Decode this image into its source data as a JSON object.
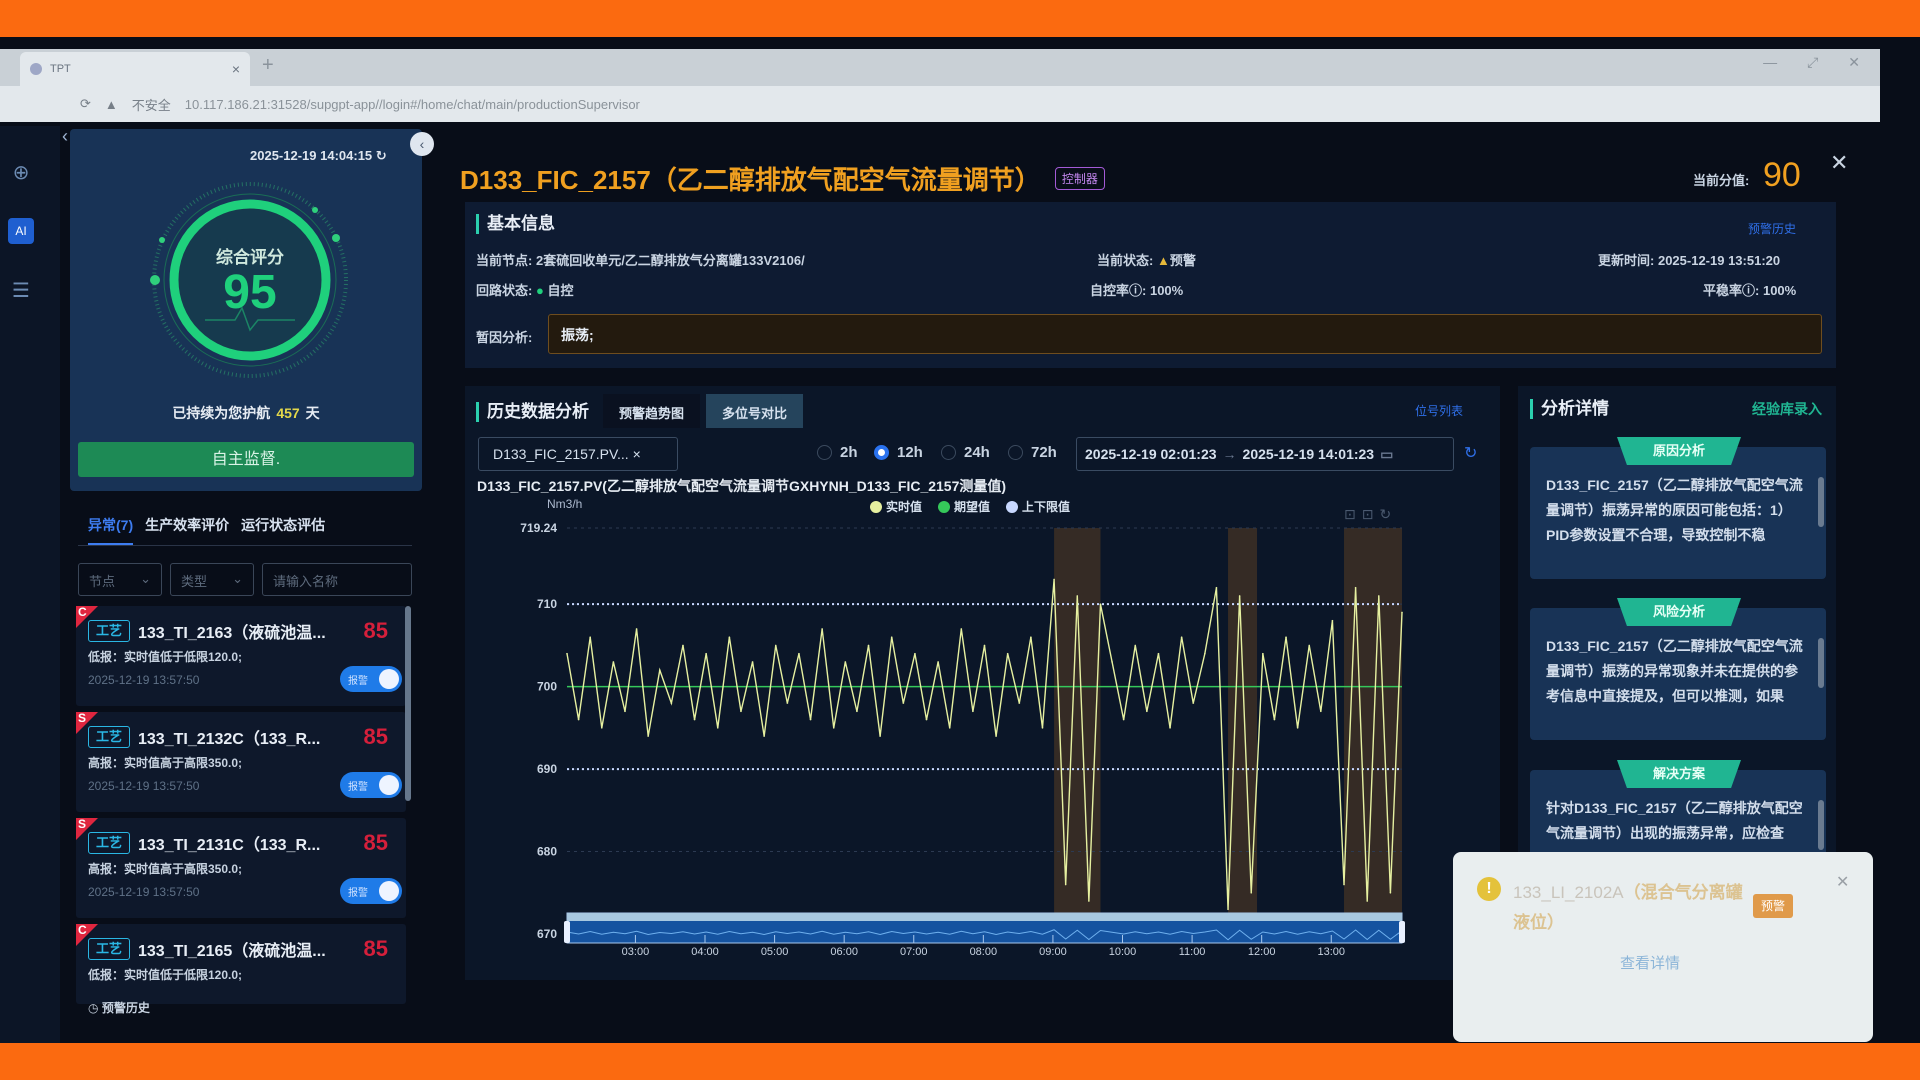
{
  "browser": {
    "tab_title": "TPT",
    "security": "不安全",
    "url": "10.117.186.21:31528/supgpt-app//login#/home/chat/main/productionSupervisor"
  },
  "left": {
    "timestamp": "2025-12-19 14:04:15",
    "score_label": "综合评分",
    "score": 95,
    "guard_prefix": "已持续为您护航",
    "guard_days": "457",
    "guard_suffix": "天",
    "self_button": "自主监督.",
    "tabs": [
      "异常(7)",
      "生产效率评价",
      "运行状态评估"
    ],
    "filters": {
      "node": "节点",
      "type": "类型",
      "search_placeholder": "请输入名称"
    },
    "alarms": [
      {
        "level": "C",
        "tag": "工艺",
        "name": "133_TI_2163（液硫池温...",
        "score": "85",
        "desc": "低报：实时值低于低限120.0;",
        "time": "2025-12-19 13:57:50",
        "toggle": "报警"
      },
      {
        "level": "S",
        "tag": "工艺",
        "name": "133_TI_2132C（133_R...",
        "score": "85",
        "desc": "高报：实时值高于高限350.0;",
        "time": "2025-12-19 13:57:50",
        "toggle": "报警"
      },
      {
        "level": "S",
        "tag": "工艺",
        "name": "133_TI_2131C（133_R...",
        "score": "85",
        "desc": "高报：实时值高于高限350.0;",
        "time": "2025-12-19 13:57:50",
        "toggle": "报警"
      },
      {
        "level": "C",
        "tag": "工艺",
        "name": "133_TI_2165（液硫池温...",
        "score": "85",
        "desc": "低报：实时值低于低限120.0;",
        "time": "",
        "toggle": ""
      }
    ],
    "history_link": "预警历史"
  },
  "main": {
    "title": "D133_FIC_2157（乙二醇排放气配空气流量调节）",
    "badge": "控制器",
    "score_label": "当前分值:",
    "score": "90",
    "basic": {
      "heading": "基本信息",
      "history_link": "预警历史",
      "node_label": "当前节点:",
      "node": "2套硫回收单元/乙二醇排放气分离罐133V2106/",
      "state_label": "当前状态:",
      "state": "预警",
      "update_label": "更新时间:",
      "update": "2025-12-19 13:51:20",
      "loop_label": "回路状态:",
      "loop": "自控",
      "auto_label": "自控率ⓘ:",
      "auto": "100%",
      "stable_label": "平稳率ⓘ:",
      "stable": "100%",
      "cause_label": "暂因分析:",
      "cause": "振荡;"
    },
    "history": {
      "heading": "历史数据分析",
      "tabs": [
        "预警趋势图",
        "多位号对比"
      ],
      "tag_list_link": "位号列表",
      "tag_chip": "D133_FIC_2157.PV...",
      "ranges": [
        "2h",
        "12h",
        "24h",
        "72h"
      ],
      "selected_range": "12h",
      "start": "2025-12-19 02:01:23",
      "end": "2025-12-19 14:01:23"
    },
    "analysis": {
      "heading": "分析详情",
      "link": "经验库录入",
      "cards": [
        {
          "title": "原因分析",
          "text": "D133_FIC_2157（乙二醇排放气配空气流量调节）振荡异常的原因可能包括：1）PID参数设置不合理，导致控制不稳"
        },
        {
          "title": "风险分析",
          "text": "D133_FIC_2157（乙二醇排放气配空气流量调节）振荡的异常现象并未在提供的参考信息中直接提及，但可以推测，如果"
        },
        {
          "title": "解决方案",
          "text": "针对D133_FIC_2157（乙二醇排放气配空气流量调节）出现的振荡异常，应检查"
        }
      ]
    }
  },
  "toast": {
    "id": "133_LI_2102A",
    "name": "（混合气分离罐液位）",
    "badge": "预警",
    "link": "查看详情"
  },
  "chart_data": {
    "type": "line",
    "title": "D133_FIC_2157.PV(乙二醇排放气配空气流量调节GXHYNH_D133_FIC_2157测量值)",
    "ylabel": "Nm3/h",
    "ylim": [
      670,
      719.24
    ],
    "yticks": [
      "719.24",
      "710",
      "700",
      "690",
      "680",
      "670"
    ],
    "xticks": [
      "03:00",
      "04:00",
      "05:00",
      "06:00",
      "07:00",
      "08:00",
      "09:00",
      "10:00",
      "11:00",
      "12:00",
      "13:00"
    ],
    "legend": [
      "实时值",
      "期望值",
      "上下限值"
    ],
    "colors": {
      "actual": "#e6f0a0",
      "expected": "#35c85a",
      "limits": "#c8d8ff",
      "band": "#5a3e22"
    },
    "expected": 700,
    "upper_limit": 710,
    "lower_limit": 690,
    "alarm_bands": [
      [
        "09:01",
        "09:41"
      ],
      [
        "11:31",
        "11:56"
      ],
      [
        "13:11",
        "14:01"
      ]
    ],
    "x": [
      "02:01",
      "02:11",
      "02:21",
      "02:31",
      "02:41",
      "02:51",
      "03:01",
      "03:11",
      "03:21",
      "03:31",
      "03:41",
      "03:51",
      "04:01",
      "04:11",
      "04:21",
      "04:31",
      "04:41",
      "04:51",
      "05:01",
      "05:11",
      "05:21",
      "05:31",
      "05:41",
      "05:51",
      "06:01",
      "06:11",
      "06:21",
      "06:31",
      "06:41",
      "06:51",
      "07:01",
      "07:11",
      "07:21",
      "07:31",
      "07:41",
      "07:51",
      "08:01",
      "08:11",
      "08:21",
      "08:31",
      "08:41",
      "08:51",
      "09:01",
      "09:11",
      "09:21",
      "09:31",
      "09:41",
      "09:51",
      "10:01",
      "10:11",
      "10:21",
      "10:31",
      "10:41",
      "10:51",
      "11:01",
      "11:11",
      "11:21",
      "11:31",
      "11:41",
      "11:51",
      "12:01",
      "12:11",
      "12:21",
      "12:31",
      "12:41",
      "12:51",
      "13:01",
      "13:11",
      "13:21",
      "13:31",
      "13:41",
      "13:51",
      "14:01"
    ],
    "series": [
      {
        "name": "实时值",
        "values": [
          704,
          696,
          706,
          695,
          703,
          697,
          707,
          694,
          702,
          698,
          705,
          696,
          704,
          695,
          706,
          697,
          703,
          694,
          705,
          698,
          704,
          696,
          707,
          695,
          703,
          697,
          705,
          694,
          706,
          698,
          704,
          696,
          703,
          695,
          707,
          697,
          705,
          694,
          704,
          698,
          706,
          695,
          713,
          676,
          711,
          674,
          710,
          703,
          696,
          705,
          697,
          704,
          695,
          706,
          698,
          704,
          712,
          673,
          711,
          675,
          704,
          696,
          706,
          695,
          705,
          697,
          708,
          676,
          712,
          674,
          711,
          675,
          709
        ]
      }
    ]
  }
}
